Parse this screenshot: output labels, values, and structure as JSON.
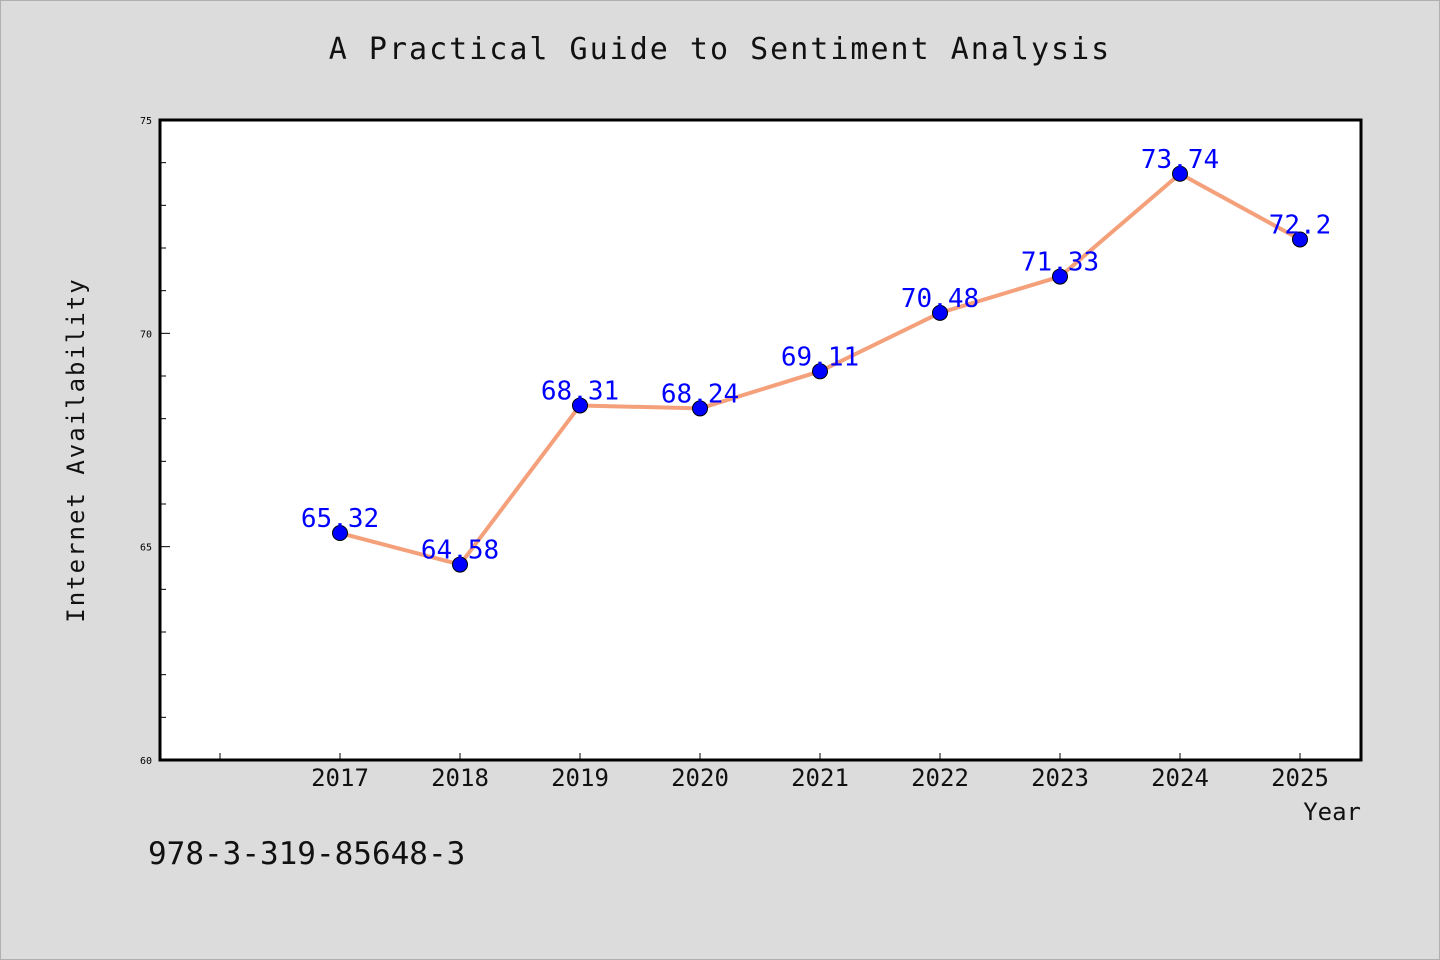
{
  "page": {
    "title": "A Practical Guide to Sentiment Analysis",
    "footer_code": "978-3-319-85648-3"
  },
  "chart_data": {
    "type": "line",
    "title": "A Practical Guide to Sentiment Analysis",
    "xlabel": "Year",
    "ylabel": "Internet Availability",
    "x": [
      "2017",
      "2018",
      "2019",
      "2020",
      "2021",
      "2022",
      "2023",
      "2024",
      "2025"
    ],
    "series": [
      {
        "values": [
          65.32,
          64.58,
          68.31,
          68.24,
          69.11,
          70.48,
          71.33,
          73.74,
          72.2
        ],
        "data_labels": [
          "65.32",
          "64.58",
          "68.31",
          "68.24",
          "69.11",
          "70.48",
          "71.33",
          "73.74",
          "72.2"
        ],
        "line_color": "#f4a07a",
        "marker_color": "#0000ff"
      }
    ],
    "ylim": [
      60,
      75
    ],
    "y_ticks": [
      "60",
      "65",
      "70",
      "75"
    ],
    "label_color": "#0000ff",
    "grid": false,
    "background": "#ffffff",
    "page_background": "#dcdcdc"
  }
}
